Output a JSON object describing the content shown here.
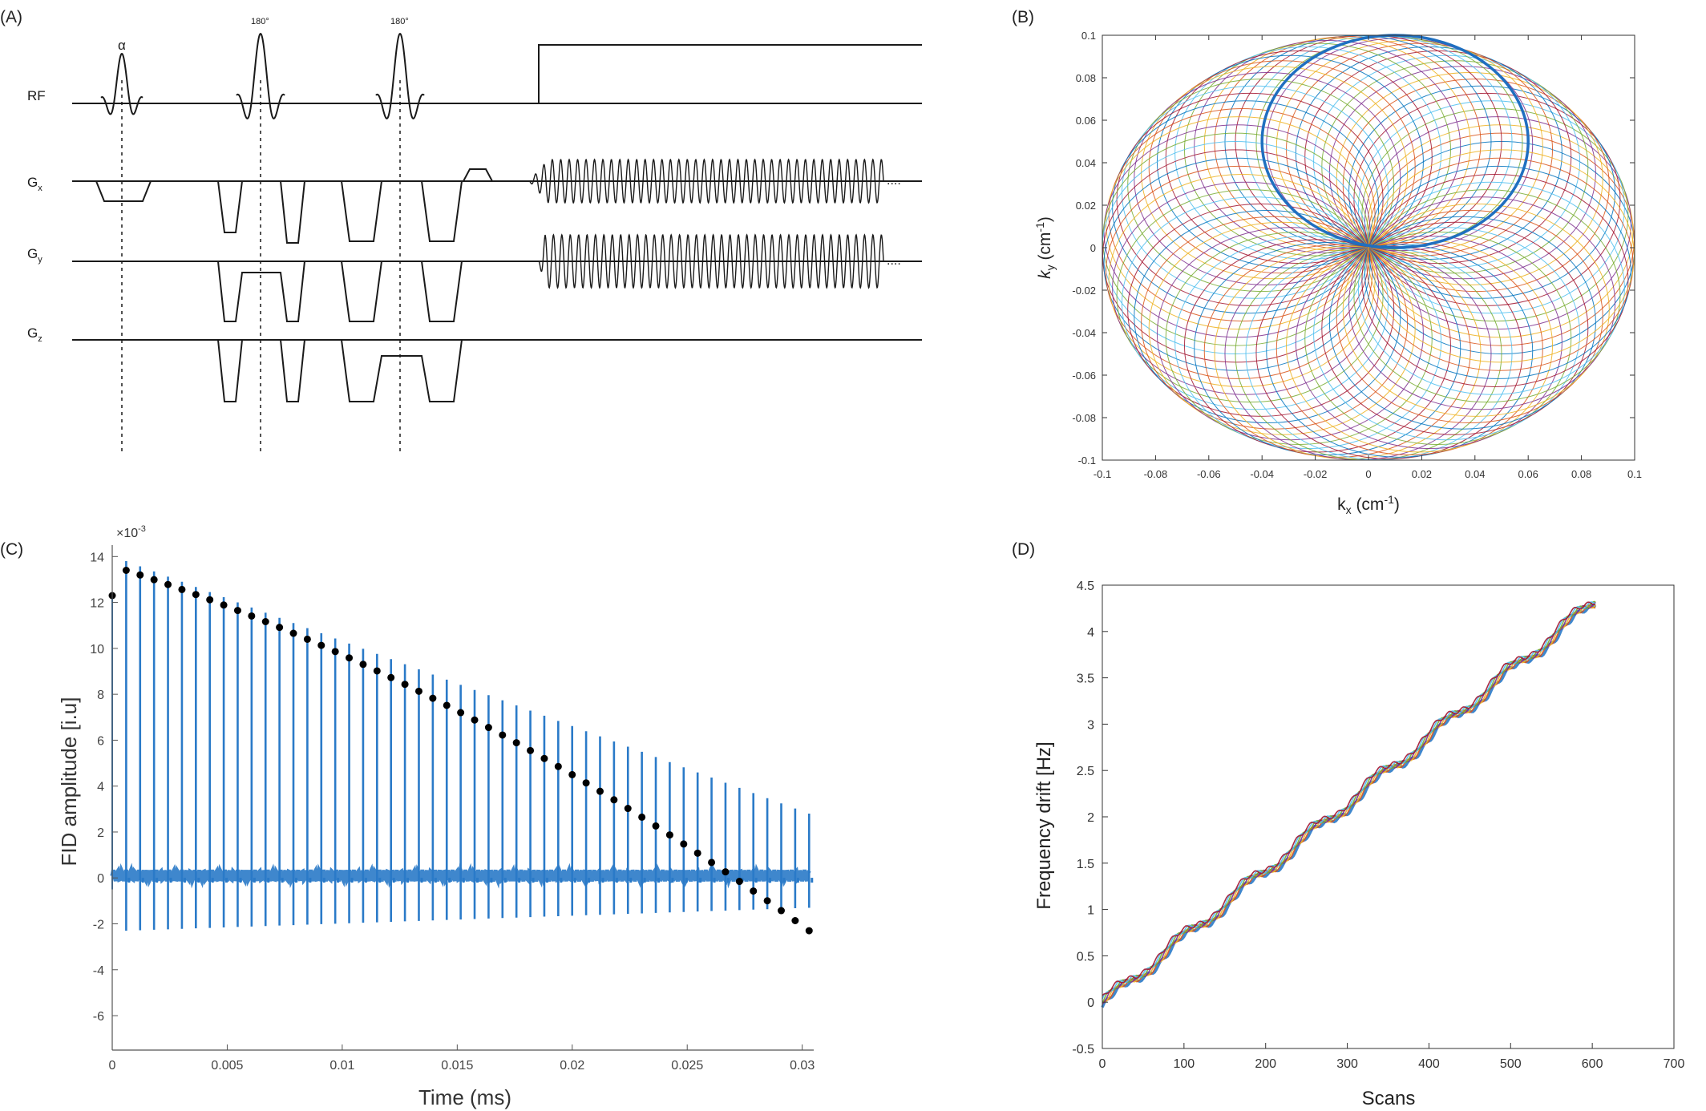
{
  "panel_labels": {
    "A": "(A)",
    "B": "(B)",
    "C": "(C)",
    "D": "(D)"
  },
  "sequence": {
    "rows": [
      {
        "main": "RF",
        "sub": ""
      },
      {
        "main": "G",
        "sub": "x"
      },
      {
        "main": "G",
        "sub": "y"
      },
      {
        "main": "G",
        "sub": "z"
      }
    ],
    "pulse_labels": [
      "α",
      "180°",
      "180°"
    ],
    "ellipsis": "....",
    "colors": {
      "line": "#1a1a1a"
    }
  },
  "chart_data": [
    {
      "id": "B",
      "type": "line",
      "xlabel": "kx (cm⁻¹)",
      "ylabel": "ky (cm⁻¹)",
      "xlabel_main": "k",
      "xlabel_sub": "x",
      "xlabel_unit": " (cm",
      "xlabel_exp": "-1",
      "xlabel_close": ")",
      "ylabel_main": "k",
      "ylabel_sub": "y",
      "ylabel_unit": " (cm",
      "ylabel_exp": "-1",
      "ylabel_close": ")",
      "xlim": [
        -0.1,
        0.1
      ],
      "ylim": [
        -0.1,
        0.1
      ],
      "xticks": [
        -0.1,
        -0.08,
        -0.06,
        -0.04,
        -0.02,
        0,
        0.02,
        0.04,
        0.06,
        0.08,
        0.1
      ],
      "yticks": [
        -0.1,
        -0.08,
        -0.06,
        -0.04,
        -0.02,
        0,
        0.02,
        0.04,
        0.06,
        0.08,
        0.1
      ],
      "xtick_labels": [
        "-0.1",
        "-0.08",
        "-0.06",
        "-0.04",
        "-0.02",
        "0",
        "0.02",
        "0.04",
        "0.06",
        "0.08",
        "0.1"
      ],
      "ytick_labels": [
        "-0.1",
        "-0.08",
        "-0.06",
        "-0.04",
        "-0.02",
        "0",
        "0.02",
        "0.04",
        "0.06",
        "0.08",
        "0.1"
      ],
      "circle_radius": 0.05,
      "num_circles": 80,
      "highlight_center": [
        0.01,
        0.05
      ],
      "palette": [
        "#0072BD",
        "#D95319",
        "#EDB120",
        "#7E2F8E",
        "#77AC30",
        "#4DBEEE",
        "#A2142F"
      ],
      "highlight_color": "#1f6fc0"
    },
    {
      "id": "C",
      "type": "line",
      "xlabel": "Time (ms)",
      "ylabel": "FID amplitude [i.u]",
      "exponent_label": "×10",
      "exponent_power": "-3",
      "xlim": [
        0,
        0.0305
      ],
      "ylim": [
        -7.5,
        14.5
      ],
      "xticks": [
        0,
        0.005,
        0.01,
        0.015,
        0.02,
        0.025,
        0.03
      ],
      "yticks": [
        -6,
        -4,
        -2,
        0,
        2,
        4,
        6,
        8,
        10,
        12,
        14
      ],
      "xtick_labels": [
        "0",
        "0.005",
        "0.01",
        "0.015",
        "0.02",
        "0.025",
        "0.03"
      ],
      "ytick_labels": [
        "-6",
        "-4",
        "-2",
        "0",
        "2",
        "4",
        "6",
        "8",
        "10",
        "12",
        "14"
      ],
      "num_echoes": 50,
      "dot_values_start": 13.4,
      "dot_values_end": -2.3,
      "first_dot": [
        0,
        12.3
      ],
      "series_color": "#2a7ac8",
      "dot_color": "#000000"
    },
    {
      "id": "D",
      "type": "line",
      "xlabel": "Scans",
      "ylabel": "Frequency drift [Hz]",
      "xlim": [
        0,
        700
      ],
      "ylim": [
        -0.5,
        4.5
      ],
      "xticks": [
        0,
        100,
        200,
        300,
        400,
        500,
        600,
        700
      ],
      "yticks": [
        -0.5,
        0,
        0.5,
        1,
        1.5,
        2,
        2.5,
        3,
        3.5,
        4,
        4.5
      ],
      "xtick_labels": [
        "0",
        "100",
        "200",
        "300",
        "400",
        "500",
        "600",
        "700"
      ],
      "ytick_labels": [
        "-0.5",
        "0",
        "0.5",
        "1",
        "1.5",
        "2",
        "2.5",
        "3",
        "3.5",
        "4",
        "4.5"
      ],
      "x_range": [
        0,
        605
      ],
      "slope_hz_per_scan": 0.0072,
      "series_colors": [
        "#2a7ac8",
        "#D95319",
        "#EDB120",
        "#7E2F8E",
        "#77AC30",
        "#4DBEEE",
        "#A2142F"
      ]
    }
  ]
}
